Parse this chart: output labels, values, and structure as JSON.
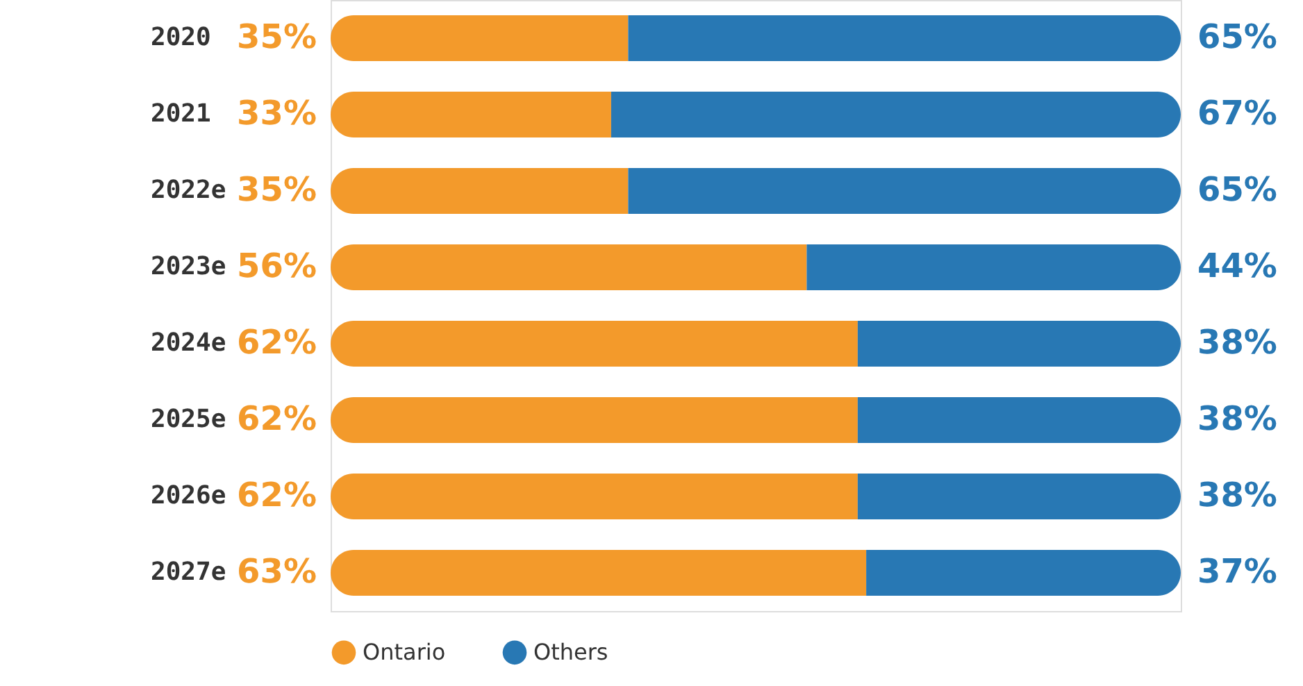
{
  "chart_data": {
    "type": "bar",
    "orientation": "horizontal",
    "stacked": true,
    "legend": "bottom",
    "categories": [
      "2020",
      "2021",
      "2022e",
      "2023e",
      "2024e",
      "2025e",
      "2026e",
      "2027e"
    ],
    "series": [
      {
        "name": "Ontario",
        "color": "#f39a2b",
        "values": [
          35,
          33,
          35,
          56,
          62,
          62,
          62,
          63
        ],
        "value_labels": [
          "35%",
          "33%",
          "35%",
          "56%",
          "62%",
          "62%",
          "62%",
          "63%"
        ]
      },
      {
        "name": "Others",
        "color": "#2878b4",
        "values": [
          65,
          67,
          65,
          44,
          38,
          38,
          38,
          37
        ],
        "value_labels": [
          "65%",
          "67%",
          "65%",
          "44%",
          "38%",
          "38%",
          "38%",
          "37%"
        ]
      }
    ]
  }
}
